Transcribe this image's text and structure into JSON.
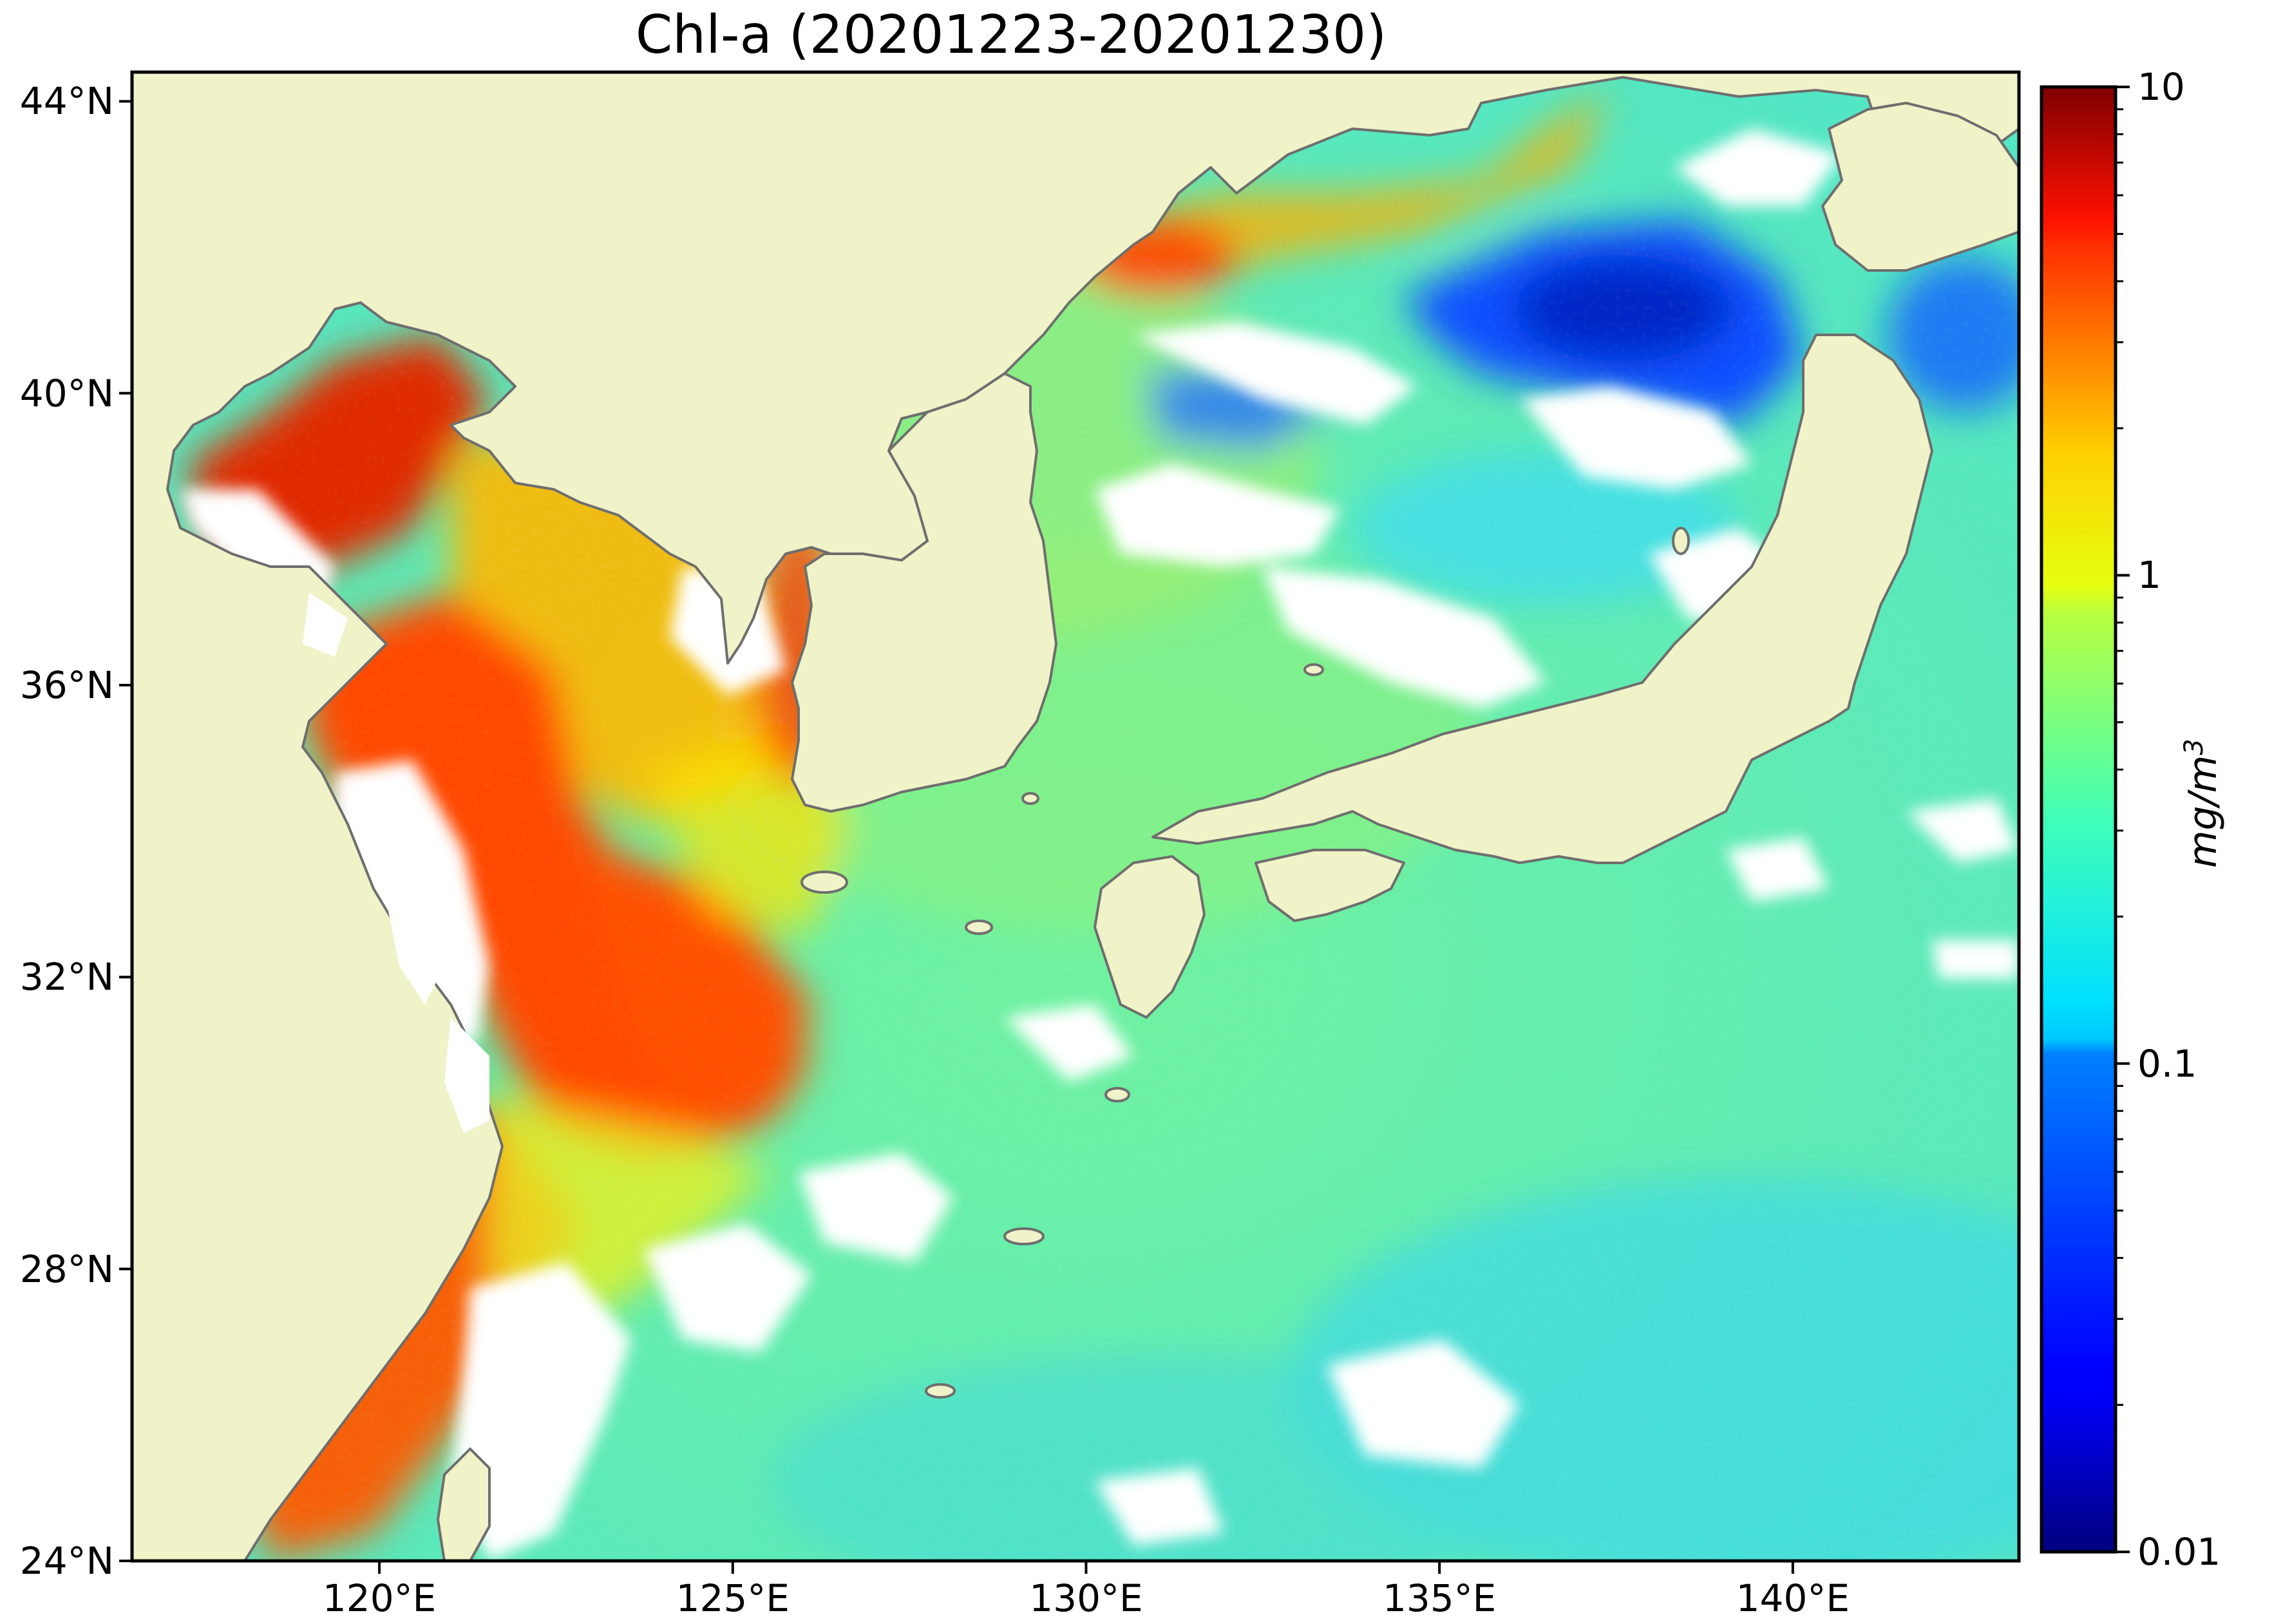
{
  "title": "Chl-a (20201223-20201230)",
  "map": {
    "lon_range": [
      116.5,
      143.2
    ],
    "lat_range": [
      24,
      44.4
    ],
    "lon_ticks": [
      {
        "value": 120,
        "label": "120°E"
      },
      {
        "value": 125,
        "label": "125°E"
      },
      {
        "value": 130,
        "label": "130°E"
      },
      {
        "value": 135,
        "label": "135°E"
      },
      {
        "value": 140,
        "label": "140°E"
      }
    ],
    "lat_ticks": [
      {
        "value": 24,
        "label": "24°N"
      },
      {
        "value": 28,
        "label": "28°N"
      },
      {
        "value": 32,
        "label": "32°N"
      },
      {
        "value": 36,
        "label": "36°N"
      },
      {
        "value": 40,
        "label": "40°N"
      },
      {
        "value": 44,
        "label": "44°N"
      }
    ],
    "land_color": "#f0f2c8",
    "coast_color": "#6e6e6e",
    "nodata_color": "#ffffff"
  },
  "colorbar": {
    "scale": "log",
    "range": [
      0.01,
      10
    ],
    "colormap": "jet",
    "tick_labels": [
      {
        "value": 10,
        "label": "10"
      },
      {
        "value": 1,
        "label": "1"
      },
      {
        "value": 0.1,
        "label": "0.1"
      },
      {
        "value": 0.01,
        "label": "0.01"
      }
    ],
    "unit_base": "mg/m",
    "unit_exp": "3"
  }
}
